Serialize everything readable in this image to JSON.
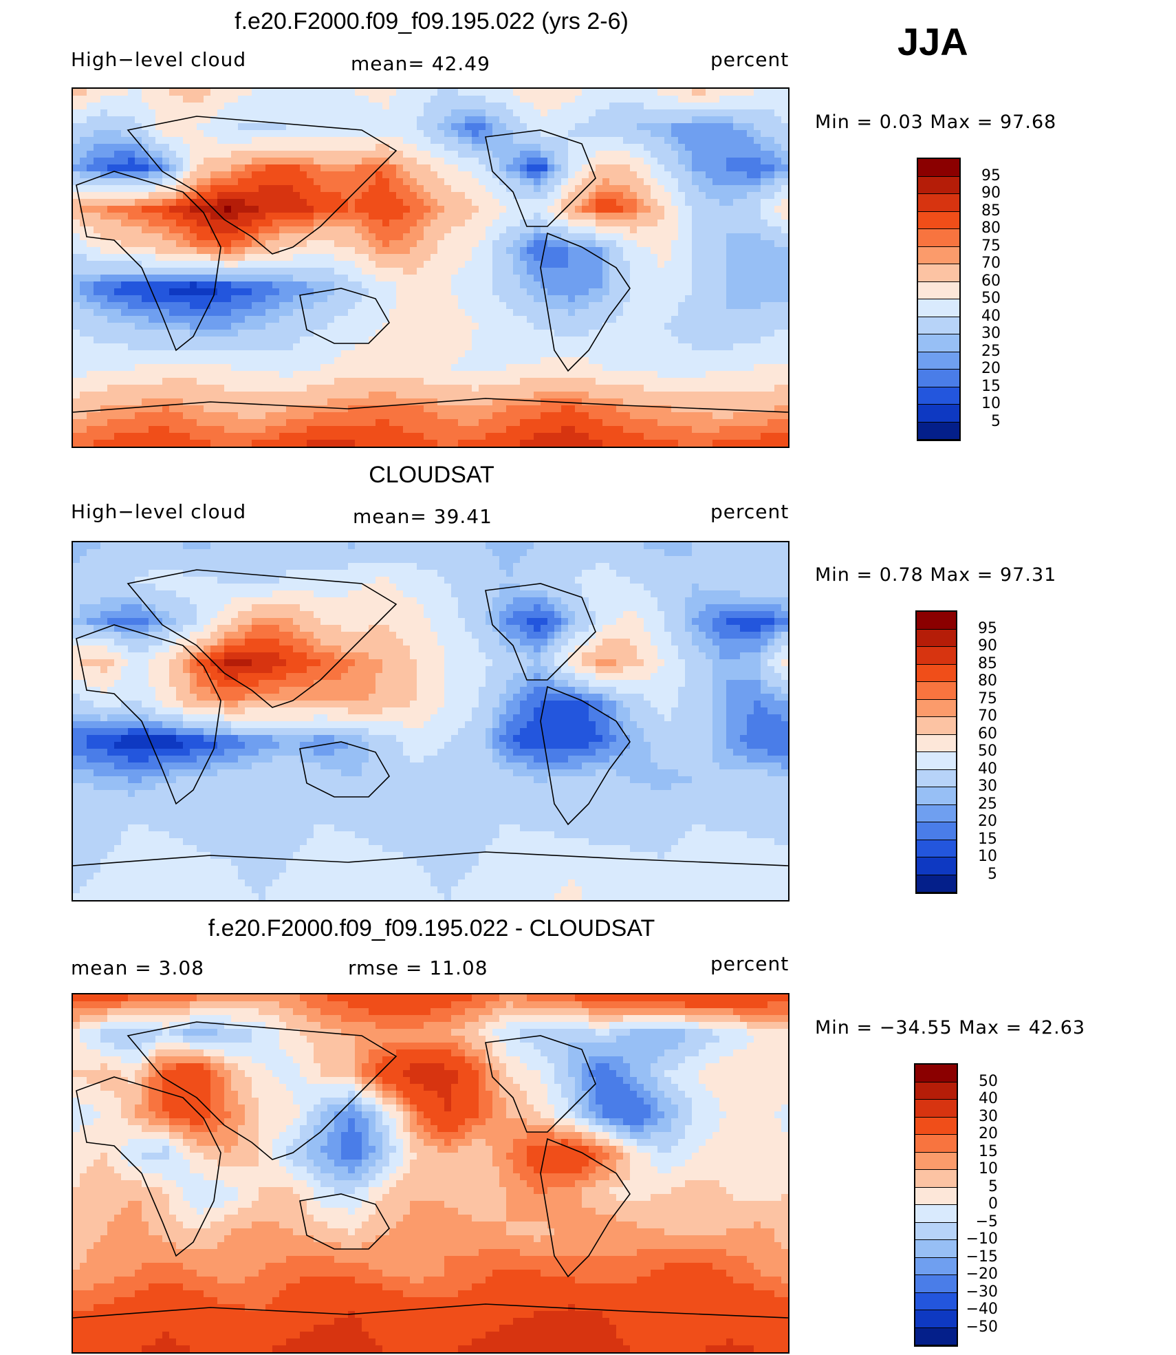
{
  "season": "JJA",
  "panels": [
    {
      "id": "model",
      "title": "f.e20.F2000.f09_f09.195.022 (yrs 2-6)",
      "left_label": "High−level cloud",
      "center_label": "mean=  42.49",
      "right_label": "percent",
      "min_max": "Min  =    0.03  Max  =   97.68",
      "colorbar": {
        "labels": [
          "95",
          "90",
          "85",
          "80",
          "75",
          "70",
          "60",
          "50",
          "40",
          "30",
          "25",
          "20",
          "15",
          "10",
          "5"
        ],
        "colors": [
          "#8b0000",
          "#b51d08",
          "#d73410",
          "#f04e19",
          "#f8743f",
          "#fb9b6b",
          "#fcc3a3",
          "#fde7d9",
          "#d9eafd",
          "#b7d3f8",
          "#97bff5",
          "#6f9ff0",
          "#4a7de8",
          "#2356dd",
          "#0e39c2",
          "#041f8a"
        ]
      },
      "field": [
        [
          70,
          55,
          50,
          60,
          65,
          55,
          50,
          45,
          45,
          50,
          55,
          45,
          40,
          45,
          50,
          60,
          55,
          45,
          45,
          55,
          65,
          60,
          50,
          45
        ],
        [
          35,
          30,
          35,
          55,
          50,
          40,
          38,
          40,
          42,
          40,
          45,
          40,
          25,
          15,
          30,
          45,
          40,
          35,
          30,
          25,
          20,
          20,
          30,
          40
        ],
        [
          25,
          15,
          10,
          20,
          60,
          70,
          80,
          82,
          75,
          75,
          80,
          65,
          55,
          45,
          25,
          10,
          40,
          65,
          60,
          40,
          25,
          20,
          15,
          25
        ],
        [
          70,
          75,
          80,
          85,
          92,
          96,
          90,
          88,
          85,
          80,
          85,
          80,
          70,
          60,
          50,
          45,
          70,
          85,
          80,
          60,
          35,
          30,
          40,
          60
        ],
        [
          40,
          55,
          60,
          65,
          75,
          80,
          70,
          60,
          55,
          60,
          75,
          70,
          55,
          50,
          30,
          15,
          20,
          25,
          45,
          55,
          40,
          30,
          25,
          30
        ],
        [
          25,
          15,
          10,
          8,
          5,
          10,
          15,
          20,
          25,
          35,
          45,
          55,
          50,
          45,
          35,
          25,
          20,
          25,
          40,
          45,
          40,
          30,
          25,
          25
        ],
        [
          40,
          35,
          30,
          28,
          25,
          25,
          30,
          35,
          40,
          45,
          50,
          55,
          55,
          50,
          45,
          40,
          35,
          40,
          45,
          40,
          35,
          30,
          35,
          40
        ],
        [
          45,
          48,
          50,
          52,
          55,
          50,
          48,
          45,
          50,
          55,
          55,
          52,
          50,
          48,
          50,
          52,
          55,
          50,
          48,
          45,
          45,
          48,
          50,
          50
        ],
        [
          65,
          70,
          72,
          75,
          70,
          68,
          65,
          70,
          72,
          75,
          78,
          76,
          72,
          70,
          75,
          78,
          80,
          76,
          72,
          70,
          68,
          66,
          68,
          70
        ],
        [
          80,
          82,
          85,
          85,
          82,
          80,
          82,
          85,
          88,
          86,
          84,
          82,
          80,
          82,
          85,
          88,
          90,
          86,
          84,
          82,
          80,
          82,
          84,
          85
        ]
      ]
    },
    {
      "id": "obs",
      "title": "CLOUDSAT",
      "left_label": "High−level cloud",
      "center_label": "mean=  39.41",
      "right_label": "percent",
      "min_max": "Min  =    0.78  Max  =   97.31",
      "colorbar": {
        "labels": [
          "95",
          "90",
          "85",
          "80",
          "75",
          "70",
          "60",
          "50",
          "40",
          "30",
          "25",
          "20",
          "15",
          "10",
          "5"
        ],
        "colors": [
          "#8b0000",
          "#b51d08",
          "#d73410",
          "#f04e19",
          "#f8743f",
          "#fb9b6b",
          "#fcc3a3",
          "#fde7d9",
          "#d9eafd",
          "#b7d3f8",
          "#97bff5",
          "#6f9ff0",
          "#4a7de8",
          "#2356dd",
          "#0e39c2",
          "#041f8a"
        ]
      },
      "field": [
        [
          25,
          30,
          35,
          30,
          28,
          30,
          32,
          35,
          30,
          28,
          30,
          32,
          35,
          30,
          28,
          30,
          32,
          35,
          30,
          28,
          30,
          32,
          35,
          30
        ],
        [
          35,
          38,
          40,
          45,
          42,
          40,
          38,
          42,
          45,
          48,
          52,
          45,
          40,
          35,
          30,
          35,
          40,
          45,
          40,
          35,
          30,
          35,
          40,
          38
        ],
        [
          30,
          20,
          15,
          25,
          40,
          60,
          75,
          72,
          60,
          55,
          60,
          55,
          45,
          35,
          20,
          10,
          25,
          45,
          55,
          40,
          25,
          15,
          10,
          20
        ],
        [
          60,
          65,
          45,
          60,
          80,
          92,
          90,
          85,
          80,
          75,
          70,
          60,
          50,
          45,
          35,
          30,
          55,
          75,
          65,
          50,
          35,
          25,
          30,
          55
        ],
        [
          35,
          45,
          40,
          55,
          70,
          75,
          72,
          70,
          70,
          72,
          68,
          60,
          50,
          40,
          25,
          15,
          10,
          20,
          35,
          45,
          35,
          25,
          20,
          25
        ],
        [
          15,
          10,
          5,
          5,
          10,
          15,
          20,
          25,
          20,
          25,
          35,
          45,
          40,
          35,
          15,
          10,
          10,
          15,
          25,
          35,
          35,
          25,
          15,
          15
        ],
        [
          30,
          28,
          25,
          30,
          32,
          35,
          38,
          40,
          35,
          30,
          32,
          35,
          38,
          40,
          35,
          30,
          32,
          35,
          30,
          28,
          30,
          32,
          35,
          30
        ],
        [
          35,
          38,
          40,
          38,
          35,
          32,
          35,
          38,
          40,
          38,
          35,
          32,
          35,
          38,
          40,
          38,
          35,
          32,
          35,
          38,
          40,
          38,
          35,
          32
        ],
        [
          38,
          40,
          42,
          45,
          42,
          40,
          38,
          40,
          42,
          45,
          42,
          40,
          38,
          40,
          42,
          45,
          48,
          45,
          42,
          40,
          42,
          45,
          48,
          45
        ],
        [
          40,
          42,
          45,
          48,
          45,
          42,
          40,
          42,
          45,
          48,
          45,
          42,
          40,
          42,
          45,
          48,
          52,
          48,
          45,
          42,
          45,
          48,
          50,
          48
        ]
      ]
    },
    {
      "id": "diff",
      "title": "f.e20.F2000.f09_f09.195.022 - CLOUDSAT",
      "left_label": "mean =      3.08",
      "center_label": "rmse  =    11.08",
      "right_label": "percent",
      "min_max": "Min  = −34.55  Max  =    42.63",
      "colorbar": {
        "labels": [
          "50",
          "40",
          "30",
          "20",
          "15",
          "10",
          "5",
          "0",
          "−5",
          "−10",
          "−15",
          "−20",
          "−30",
          "−40",
          "−50"
        ],
        "colors": [
          "#8b0000",
          "#b51d08",
          "#d73410",
          "#f04e19",
          "#f8743f",
          "#fb9b6b",
          "#fcc3a3",
          "#fde7d9",
          "#d9eafd",
          "#b7d3f8",
          "#97bff5",
          "#6f9ff0",
          "#4a7de8",
          "#2356dd",
          "#0e39c2",
          "#041f8a"
        ]
      },
      "field": [
        [
          25,
          25,
          22,
          20,
          18,
          15,
          12,
          15,
          20,
          25,
          30,
          30,
          25,
          20,
          15,
          18,
          22,
          25,
          28,
          30,
          32,
          30,
          28,
          25
        ],
        [
          2,
          -8,
          -12,
          -5,
          -15,
          -10,
          -5,
          3,
          8,
          10,
          12,
          12,
          10,
          5,
          -5,
          -8,
          -10,
          -5,
          -12,
          -15,
          -10,
          -5,
          0,
          2
        ],
        [
          5,
          8,
          3,
          25,
          30,
          10,
          2,
          -3,
          5,
          10,
          25,
          35,
          35,
          20,
          5,
          0,
          -10,
          -25,
          -15,
          -5,
          0,
          5,
          3,
          5
        ],
        [
          -3,
          0,
          10,
          20,
          25,
          15,
          5,
          3,
          -10,
          -20,
          -5,
          15,
          30,
          20,
          10,
          5,
          -5,
          -20,
          -30,
          -15,
          -5,
          0,
          5,
          -3
        ],
        [
          3,
          5,
          -5,
          -8,
          5,
          10,
          5,
          -8,
          -15,
          -25,
          -10,
          5,
          10,
          5,
          15,
          25,
          30,
          20,
          5,
          -5,
          0,
          3,
          5,
          3
        ],
        [
          5,
          8,
          10,
          5,
          -5,
          -3,
          5,
          8,
          -3,
          -5,
          5,
          10,
          8,
          5,
          10,
          15,
          12,
          5,
          3,
          5,
          8,
          5,
          3,
          5
        ],
        [
          8,
          10,
          12,
          8,
          5,
          10,
          12,
          10,
          8,
          5,
          10,
          12,
          15,
          12,
          10,
          8,
          12,
          15,
          12,
          10,
          8,
          10,
          12,
          8
        ],
        [
          10,
          12,
          15,
          18,
          15,
          12,
          15,
          18,
          20,
          18,
          15,
          12,
          15,
          18,
          22,
          20,
          18,
          15,
          18,
          22,
          25,
          20,
          15,
          12
        ],
        [
          20,
          22,
          25,
          28,
          25,
          22,
          20,
          25,
          28,
          30,
          28,
          25,
          22,
          25,
          28,
          30,
          32,
          30,
          28,
          25,
          22,
          25,
          28,
          25
        ],
        [
          25,
          28,
          30,
          32,
          30,
          28,
          30,
          32,
          35,
          32,
          30,
          28,
          30,
          32,
          35,
          38,
          35,
          32,
          30,
          28,
          30,
          32,
          30,
          28
        ]
      ]
    }
  ]
}
